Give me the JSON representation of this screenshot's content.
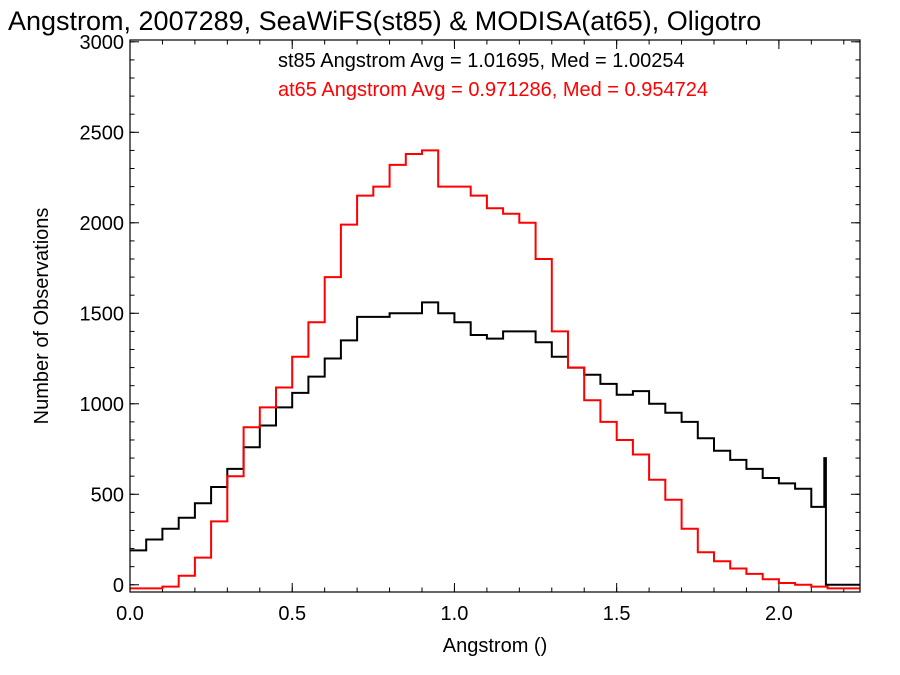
{
  "chart_data": {
    "type": "line",
    "title": "Angstrom, 2007289, SeaWiFS(st85) & MODISA(at65), Oligotro",
    "xlabel": "Angstrom ()",
    "ylabel": "Number of Observations",
    "xlim": [
      0.0,
      2.25
    ],
    "ylim": [
      -40,
      3010
    ],
    "x_ticks": [
      0.0,
      0.5,
      1.0,
      1.5,
      2.0
    ],
    "x_tick_labels": [
      "0.0",
      "0.5",
      "1.0",
      "1.5",
      "2.0"
    ],
    "y_ticks": [
      0,
      500,
      1000,
      1500,
      2000,
      2500,
      3000
    ],
    "y_tick_labels": [
      "0",
      "500",
      "1000",
      "1500",
      "2000",
      "2500",
      "3000"
    ],
    "grid": false,
    "annotations": [
      {
        "text": "st85 Angstrom Avg = 1.01695, Med = 1.00254",
        "color": "#000000"
      },
      {
        "text": "at65 Angstrom Avg = 0.971286, Med = 0.954724",
        "color": "#ff0000"
      }
    ],
    "series": [
      {
        "color": "#000000",
        "step": true,
        "x": [
          0.0,
          0.05,
          0.1,
          0.15,
          0.2,
          0.25,
          0.3,
          0.35,
          0.4,
          0.45,
          0.5,
          0.55,
          0.6,
          0.65,
          0.7,
          0.75,
          0.8,
          0.85,
          0.9,
          0.95,
          1.0,
          1.05,
          1.1,
          1.15,
          1.2,
          1.25,
          1.3,
          1.35,
          1.4,
          1.45,
          1.5,
          1.55,
          1.6,
          1.65,
          1.7,
          1.75,
          1.8,
          1.85,
          1.9,
          1.95,
          2.0,
          2.05,
          2.1,
          2.14,
          2.145,
          2.15,
          2.25
        ],
        "y": [
          190,
          250,
          310,
          370,
          450,
          540,
          640,
          760,
          880,
          980,
          1060,
          1150,
          1250,
          1350,
          1480,
          1480,
          1500,
          1500,
          1560,
          1500,
          1450,
          1380,
          1360,
          1400,
          1400,
          1340,
          1260,
          1200,
          1160,
          1110,
          1050,
          1070,
          1000,
          950,
          900,
          810,
          740,
          690,
          640,
          590,
          560,
          530,
          430,
          700,
          0,
          0,
          0
        ]
      },
      {
        "color": "#ff0000",
        "step": true,
        "x": [
          0.0,
          0.05,
          0.1,
          0.15,
          0.2,
          0.25,
          0.3,
          0.35,
          0.4,
          0.45,
          0.5,
          0.55,
          0.6,
          0.65,
          0.7,
          0.75,
          0.8,
          0.85,
          0.9,
          0.95,
          1.0,
          1.05,
          1.1,
          1.15,
          1.2,
          1.25,
          1.3,
          1.35,
          1.4,
          1.45,
          1.5,
          1.55,
          1.6,
          1.65,
          1.7,
          1.75,
          1.8,
          1.85,
          1.9,
          1.95,
          2.0,
          2.05,
          2.1,
          2.15,
          2.25
        ],
        "y": [
          -20,
          -20,
          -10,
          50,
          150,
          350,
          600,
          870,
          980,
          1090,
          1260,
          1450,
          1700,
          1990,
          2150,
          2200,
          2320,
          2380,
          2400,
          2200,
          2200,
          2150,
          2080,
          2050,
          2000,
          1800,
          1400,
          1200,
          1020,
          900,
          800,
          720,
          580,
          470,
          310,
          180,
          130,
          90,
          60,
          30,
          10,
          0,
          -10,
          -20,
          -20
        ]
      }
    ]
  }
}
